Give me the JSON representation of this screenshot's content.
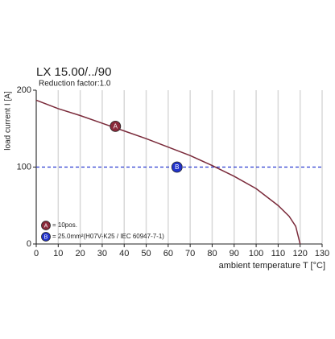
{
  "chart_data": {
    "type": "line",
    "title": "LX 15.00/../90",
    "subtitle": "Reduction factor:1.0",
    "xlabel": "ambient temperature T [°C]",
    "ylabel": "load current I [A]",
    "x": [
      0,
      10,
      20,
      30,
      40,
      50,
      60,
      70,
      80,
      90,
      100,
      110,
      115,
      118,
      120
    ],
    "series": [
      {
        "color": "#7a2a3a",
        "values": [
          187,
          176,
          167,
          157,
          147,
          137,
          126,
          115,
          102,
          88,
          72,
          50,
          36,
          23,
          0
        ]
      }
    ],
    "reference_line": {
      "y": 100,
      "color": "#2a3ad0"
    },
    "markers": [
      {
        "label": "A",
        "legend": "= 10pos.",
        "x": 36,
        "y": 153,
        "color": "#8a2a3a"
      },
      {
        "label": "B",
        "legend": "= 25.0mm²(H07V-K25 / IEC 60947-7-1)",
        "x": 64,
        "y": 100,
        "color": "#2233cc"
      }
    ],
    "xlim": [
      0,
      130
    ],
    "xticks": [
      0,
      10,
      20,
      30,
      40,
      50,
      60,
      70,
      80,
      90,
      100,
      110,
      120,
      130
    ],
    "ylim": [
      0,
      200
    ],
    "yticks": [
      0,
      100,
      200
    ],
    "grid": true
  }
}
